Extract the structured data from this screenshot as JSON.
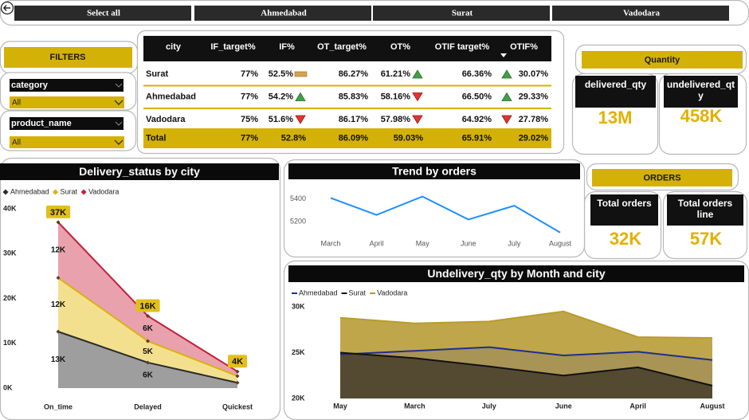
{
  "header": {
    "buttons": [
      "Select all",
      "Ahmedabad",
      "Surat",
      "Vadodara"
    ]
  },
  "filters": {
    "title": "FILTERS",
    "slicers": [
      {
        "label": "category",
        "value": "All"
      },
      {
        "label": "product_name",
        "value": "All"
      }
    ]
  },
  "table": {
    "columns": [
      "city",
      "IF_target%",
      "IF%",
      "OT_target%",
      "OT%",
      "OTIF target%",
      "OTIF%"
    ],
    "rows": [
      [
        "Surat",
        "77%",
        {
          "text": "52.5%",
          "trend": "flat"
        },
        "86.27%",
        {
          "text": "61.21%",
          "trend": "up"
        },
        "66.36%",
        {
          "text": "30.07%",
          "trend": "up"
        }
      ],
      [
        "Ahmedabad",
        "77%",
        {
          "text": "54.2%",
          "trend": "up"
        },
        "85.83%",
        {
          "text": "58.16%",
          "trend": "down"
        },
        "66.50%",
        {
          "text": "29.33%",
          "trend": "up"
        }
      ],
      [
        "Vadodara",
        "75%",
        {
          "text": "51.6%",
          "trend": "down"
        },
        "86.17%",
        {
          "text": "57.98%",
          "trend": "down"
        },
        "64.92%",
        {
          "text": "27.78%",
          "trend": "down"
        }
      ]
    ],
    "total": [
      "Total",
      "77%",
      "52.8%",
      "86.09%",
      "59.03%",
      "65.91%",
      "29.02%"
    ]
  },
  "quantity": {
    "title": "Quantity",
    "cards": [
      {
        "label": "delivered_qty",
        "value": "13M"
      },
      {
        "label": "undelivered_qty",
        "value": "458K"
      }
    ]
  },
  "orders": {
    "title": "ORDERS",
    "cards": [
      {
        "label": "Total orders",
        "value": "32K"
      },
      {
        "label": "Total orders line",
        "value": "57K"
      }
    ]
  },
  "chart_data": [
    {
      "type": "area",
      "stacked": true,
      "title": "Delivery_status by city",
      "categories": [
        "On_time",
        "Delayed",
        "Quickest"
      ],
      "series": [
        {
          "name": "Ahmedabad",
          "color": "#2b2b2b",
          "fill": "#9e9e9e",
          "values": [
            12600,
            5700,
            1200
          ],
          "value_labels": [
            "13K",
            "6K",
            null
          ]
        },
        {
          "name": "Surat",
          "color": "#d9b20f",
          "fill": "#f3e08f",
          "values": [
            12000,
            4800,
            1500
          ],
          "value_labels": [
            "12K",
            "5K",
            null
          ]
        },
        {
          "name": "Vadodara",
          "color": "#c3203a",
          "fill": "#e8a1ad",
          "values": [
            12400,
            5600,
            1000
          ],
          "value_labels": [
            "12K",
            "6K",
            null
          ]
        }
      ],
      "totals": [
        37000,
        16100,
        3700
      ],
      "total_labels": [
        "37K",
        "16K",
        "4K"
      ],
      "total_color": "#e2bf1a",
      "ylim": [
        0,
        40000
      ],
      "yticks": [
        {
          "value": 0,
          "label": "0K"
        },
        {
          "value": 10000,
          "label": "10K"
        },
        {
          "value": 20000,
          "label": "20K"
        },
        {
          "value": 30000,
          "label": "30K"
        },
        {
          "value": 40000,
          "label": "40K"
        }
      ],
      "grid": false,
      "legend": "top-left"
    },
    {
      "type": "line",
      "title": "Trend by orders",
      "categories": [
        "March",
        "April",
        "May",
        "June",
        "July",
        "August"
      ],
      "values": [
        5407,
        5260,
        5420,
        5220,
        5340,
        5107
      ],
      "color": "#1e8fff",
      "ylim": [
        5050,
        5500
      ],
      "yticks": [
        5200,
        5400
      ],
      "grid": false
    },
    {
      "type": "area",
      "stacked": false,
      "title": "Undelivery_qty by Month and city",
      "categories": [
        "May",
        "March",
        "July",
        "June",
        "April",
        "August"
      ],
      "series": [
        {
          "name": "Ahmedabad",
          "color": "#1f2f8f",
          "fill": "#1f2f8f26",
          "values": [
            24800,
            25200,
            25600,
            24700,
            25100,
            24200
          ]
        },
        {
          "name": "Surat",
          "color": "#111111",
          "fill": "#1a160a99",
          "values": [
            25000,
            24400,
            23500,
            22500,
            23400,
            21400
          ]
        },
        {
          "name": "Vadodara",
          "color": "#b89c2b",
          "fill": "#c0a64a",
          "values": [
            28800,
            28200,
            28400,
            29500,
            26700,
            26600
          ]
        }
      ],
      "ylim": [
        20000,
        30000
      ],
      "yticks": [
        {
          "value": 20000,
          "label": "20K"
        },
        {
          "value": 25000,
          "label": "25K"
        },
        {
          "value": 30000,
          "label": "30K"
        }
      ],
      "grid": false,
      "legend": "top-left"
    }
  ]
}
